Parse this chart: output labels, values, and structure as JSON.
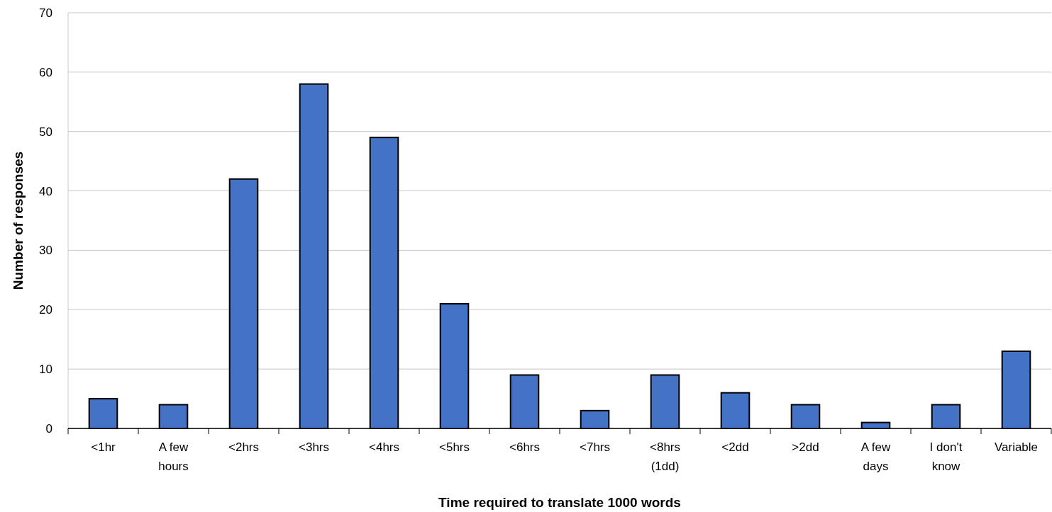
{
  "chart_data": {
    "type": "bar",
    "xlabel": "Time required to translate 1000 words",
    "ylabel": "Number of responses",
    "categories": [
      "<1hr",
      "A few hours",
      "<2hrs",
      "<3hrs",
      "<4hrs",
      "<5hrs",
      "<6hrs",
      "<7hrs",
      "<8hrs (1dd)",
      "<2dd",
      ">2dd",
      "A few days",
      "I don't know",
      "Variable"
    ],
    "values": [
      5,
      4,
      42,
      58,
      49,
      21,
      9,
      3,
      9,
      6,
      4,
      1,
      4,
      13
    ],
    "color": "#4472c4",
    "ylim": [
      0,
      70
    ],
    "yticks": [
      0,
      10,
      20,
      30,
      40,
      50,
      60,
      70
    ],
    "grid": "y"
  }
}
